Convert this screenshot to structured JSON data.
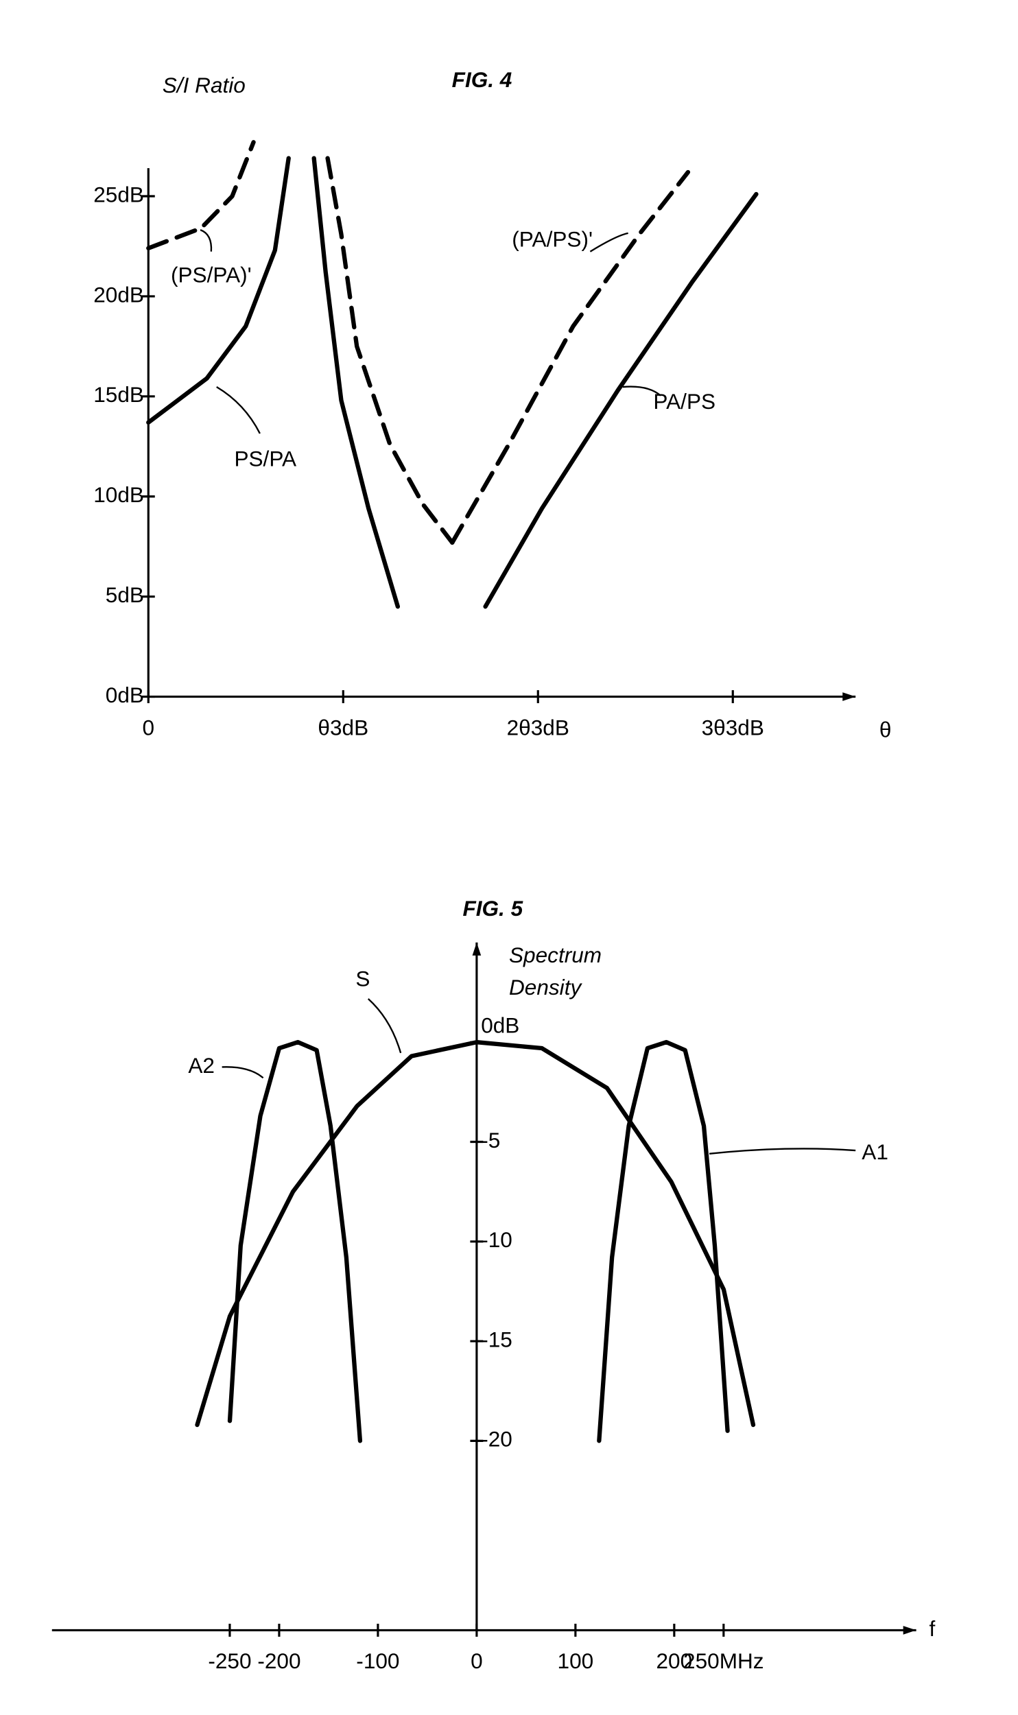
{
  "chart_data": [
    {
      "type": "line",
      "title": "FIG. 4",
      "y_label": "S/I Ratio",
      "x_label": "θ",
      "xlim": [
        0,
        3.63
      ],
      "ylim": [
        0,
        26.4
      ],
      "xticks": [
        0,
        {
          "value": 1,
          "label": "θ3dB"
        },
        {
          "value": 2,
          "label": "2θ3dB"
        },
        {
          "value": 3,
          "label": "3θ3dB"
        }
      ],
      "yticks": [
        {
          "value": 0,
          "label": "0dB"
        },
        {
          "value": 5,
          "label": "5dB"
        },
        {
          "value": 10,
          "label": "10dB"
        },
        {
          "value": 15,
          "label": "15dB"
        },
        {
          "value": 20,
          "label": "20dB"
        },
        {
          "value": 25,
          "label": "25dB"
        }
      ],
      "series": [
        {
          "name": "(PS/PA)'",
          "color": "#000000",
          "style": "dashed",
          "x": [
            0,
            0.27,
            0.43,
            0.54,
            null,
            0.92,
            0.99,
            1.07,
            1.24,
            1.41,
            1.56
          ],
          "values": [
            22.4,
            23.4,
            25,
            27.7,
            null,
            26.9,
            23.1,
            17.5,
            12.6,
            9.6,
            7.7
          ]
        },
        {
          "name": "PS/PA",
          "color": "#000000",
          "style": "solid",
          "x": [
            0,
            0.3,
            0.5,
            0.65,
            0.72,
            null,
            0.85,
            0.91,
            0.99,
            1.13,
            1.28
          ],
          "values": [
            13.7,
            15.9,
            18.5,
            22.3,
            26.9,
            null,
            26.9,
            21.2,
            14.8,
            9.4,
            4.5
          ]
        },
        {
          "name": "(PA/PS)'",
          "color": "#000000",
          "style": "dashed",
          "x": [
            1.56,
            1.85,
            2.18,
            2.52,
            2.77
          ],
          "values": [
            7.7,
            12.6,
            18.5,
            23.1,
            26.2
          ]
        },
        {
          "name": "PA/PS",
          "color": "#000000",
          "style": "solid",
          "x": [
            1.73,
            2.02,
            2.41,
            2.79,
            3.12
          ],
          "values": [
            4.5,
            9.4,
            15.3,
            20.7,
            25.1
          ]
        }
      ]
    },
    {
      "type": "line",
      "title": "FIG. 5",
      "y_label": [
        "Spectrum",
        "Density"
      ],
      "x_label": "f",
      "xlim": [
        -430,
        445
      ],
      "ylim": [
        -29.5,
        5
      ],
      "xticks": [
        -250,
        -200,
        -100,
        0,
        100,
        200,
        {
          "value": 250,
          "label": "250MHz"
        }
      ],
      "yticks": [
        {
          "value": 0,
          "label": "0dB"
        },
        -5,
        -10,
        -15,
        -20
      ],
      "series": [
        {
          "name": "S",
          "color": "#000000",
          "style": "solid",
          "x": [
            -283,
            -250,
            -186,
            -121,
            -66,
            0,
            66,
            132,
            197,
            250,
            280
          ],
          "values": [
            -19.2,
            -13.75,
            -7.5,
            -3.2,
            -0.7,
            0,
            -0.3,
            -2.3,
            -7,
            -12.4,
            -19.2
          ]
        },
        {
          "name": "A2",
          "color": "#000000",
          "style": "solid",
          "x": [
            -250,
            -239,
            -219,
            -200,
            -181,
            -162,
            -148,
            -132,
            -118
          ],
          "values": [
            -19,
            -10.2,
            -3.7,
            -0.3,
            0,
            -0.4,
            -4.2,
            -10.8,
            -20
          ]
        },
        {
          "name": "A1",
          "color": "#000000",
          "style": "solid",
          "x": [
            124,
            137,
            154,
            173,
            192,
            211,
            230,
            241,
            254
          ],
          "values": [
            -20,
            -10.8,
            -4.2,
            -0.3,
            0,
            -0.4,
            -4.2,
            -10.2,
            -19.5
          ]
        }
      ]
    }
  ]
}
